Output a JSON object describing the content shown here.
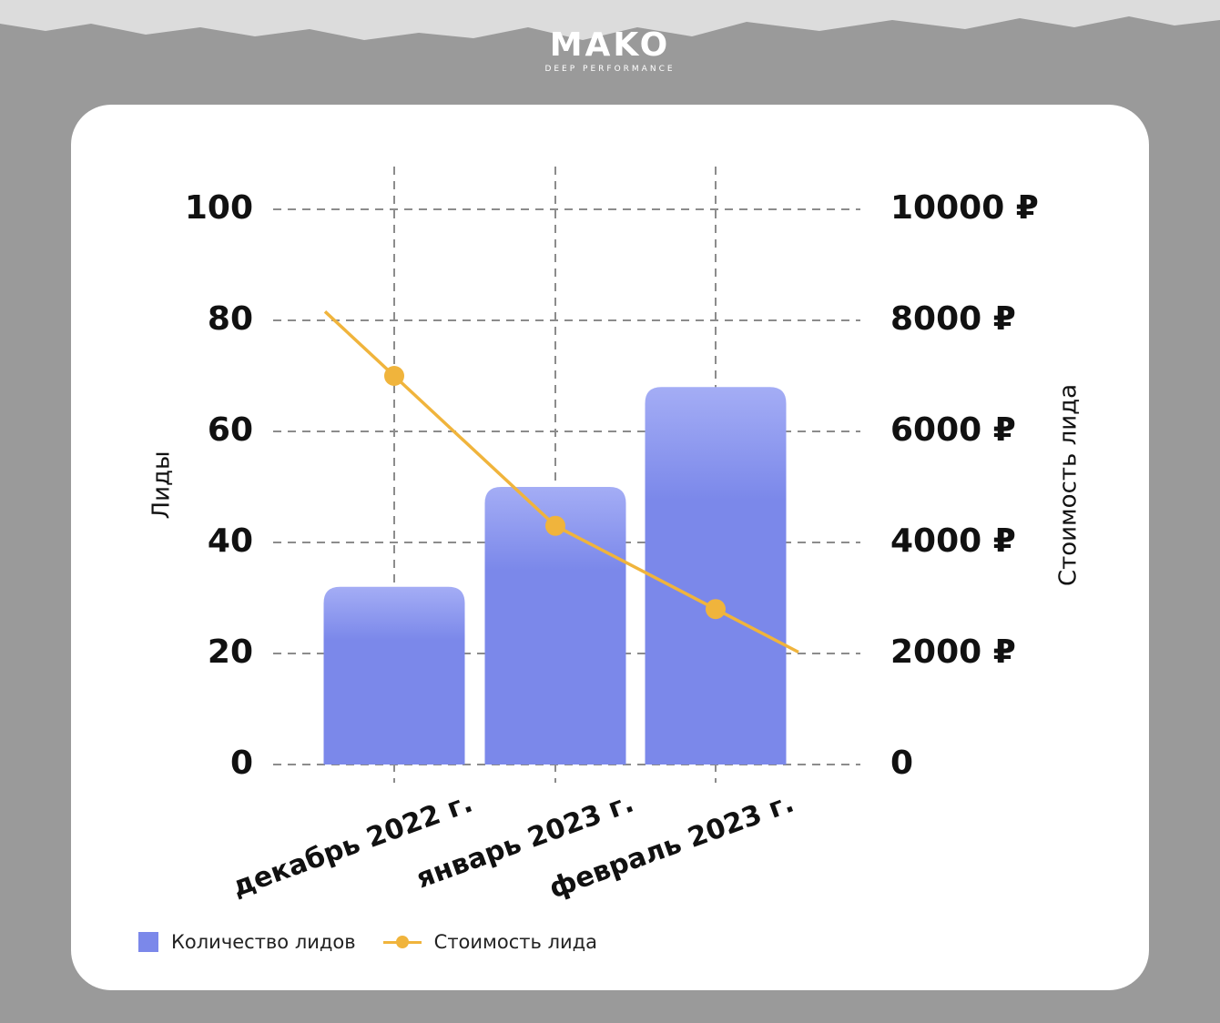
{
  "brand": {
    "name": "MAKO",
    "tagline": "DEEP PERFORMANCE"
  },
  "chart_data": {
    "type": "bar+line",
    "categories": [
      "декабрь 2022 г.",
      "январь 2023 г.",
      "февраль 2023 г."
    ],
    "series": [
      {
        "name": "Количество лидов",
        "type": "bar",
        "axis": "left",
        "values": [
          32,
          50,
          68
        ],
        "color": "#7b88ea"
      },
      {
        "name": "Стоимость лида",
        "type": "line",
        "axis": "right",
        "values": [
          7000,
          4300,
          2800
        ],
        "color": "#f0b43c"
      }
    ],
    "left_axis": {
      "label": "Лиды",
      "ticks": [
        "0",
        "20",
        "40",
        "60",
        "80",
        "100"
      ],
      "range": [
        0,
        100
      ]
    },
    "right_axis": {
      "label": "Стоимость лида",
      "ticks": [
        "0",
        "2000 ₽",
        "4000 ₽",
        "6000 ₽",
        "8000 ₽",
        "10000 ₽"
      ],
      "range": [
        0,
        10000
      ]
    },
    "grid": true,
    "legend_position": "bottom-left"
  },
  "legend": {
    "bars_label": "Количество лидов",
    "line_label": "Стоимость лида"
  }
}
